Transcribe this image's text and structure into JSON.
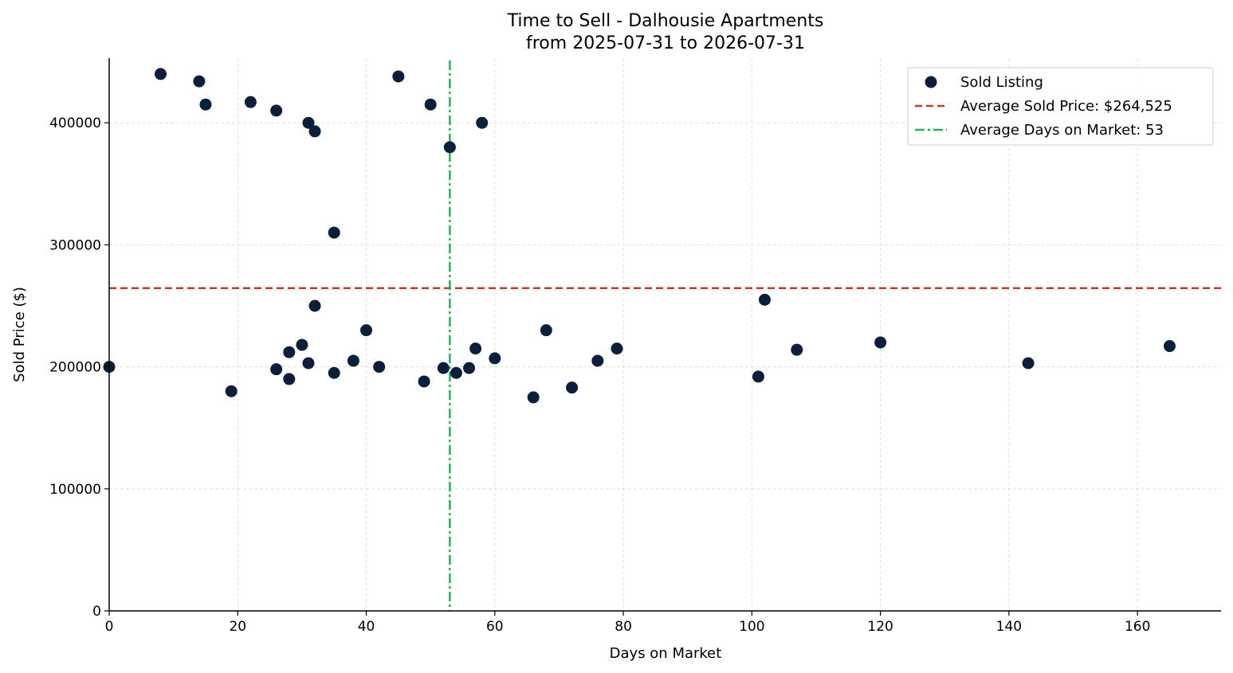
{
  "chart_data": {
    "type": "scatter",
    "title": "Time to Sell - Dalhousie Apartments",
    "subtitle": "from 2025-07-31 to 2026-07-31",
    "xlabel": "Days on Market",
    "ylabel": "Sold Price ($)",
    "xlim": [
      0,
      173
    ],
    "ylim": [
      0,
      453000
    ],
    "x_ticks": [
      0,
      20,
      40,
      60,
      80,
      100,
      120,
      140,
      160
    ],
    "y_ticks": [
      0,
      100000,
      200000,
      300000,
      400000
    ],
    "grid": true,
    "legend_position": "top-right",
    "colors": {
      "points": "#0b1f3a",
      "avg_price_line": "#c0392b",
      "avg_days_line": "#27ae60"
    },
    "series": [
      {
        "name": "Sold Listing",
        "points": [
          {
            "x": 0,
            "y": 200000
          },
          {
            "x": 8,
            "y": 440000
          },
          {
            "x": 14,
            "y": 434000
          },
          {
            "x": 15,
            "y": 415000
          },
          {
            "x": 19,
            "y": 180000
          },
          {
            "x": 22,
            "y": 417000
          },
          {
            "x": 26,
            "y": 410000
          },
          {
            "x": 26,
            "y": 198000
          },
          {
            "x": 28,
            "y": 212000
          },
          {
            "x": 28,
            "y": 190000
          },
          {
            "x": 30,
            "y": 218000
          },
          {
            "x": 31,
            "y": 400000
          },
          {
            "x": 31,
            "y": 203000
          },
          {
            "x": 32,
            "y": 393000
          },
          {
            "x": 32,
            "y": 250000
          },
          {
            "x": 35,
            "y": 310000
          },
          {
            "x": 35,
            "y": 195000
          },
          {
            "x": 38,
            "y": 205000
          },
          {
            "x": 40,
            "y": 230000
          },
          {
            "x": 42,
            "y": 200000
          },
          {
            "x": 45,
            "y": 438000
          },
          {
            "x": 49,
            "y": 188000
          },
          {
            "x": 50,
            "y": 415000
          },
          {
            "x": 52,
            "y": 199000
          },
          {
            "x": 53,
            "y": 380000
          },
          {
            "x": 54,
            "y": 195000
          },
          {
            "x": 56,
            "y": 199000
          },
          {
            "x": 57,
            "y": 215000
          },
          {
            "x": 58,
            "y": 400000
          },
          {
            "x": 60,
            "y": 207000
          },
          {
            "x": 66,
            "y": 175000
          },
          {
            "x": 68,
            "y": 230000
          },
          {
            "x": 72,
            "y": 183000
          },
          {
            "x": 76,
            "y": 205000
          },
          {
            "x": 79,
            "y": 215000
          },
          {
            "x": 101,
            "y": 192000
          },
          {
            "x": 102,
            "y": 255000
          },
          {
            "x": 107,
            "y": 214000
          },
          {
            "x": 120,
            "y": 220000
          },
          {
            "x": 143,
            "y": 203000
          },
          {
            "x": 165,
            "y": 217000
          }
        ]
      }
    ],
    "reference_lines": [
      {
        "name": "Average Sold Price: $264,525",
        "orientation": "horizontal",
        "value": 264525,
        "style": "dashed"
      },
      {
        "name": "Average Days on Market: 53",
        "orientation": "vertical",
        "value": 53,
        "style": "dashdot"
      }
    ]
  }
}
